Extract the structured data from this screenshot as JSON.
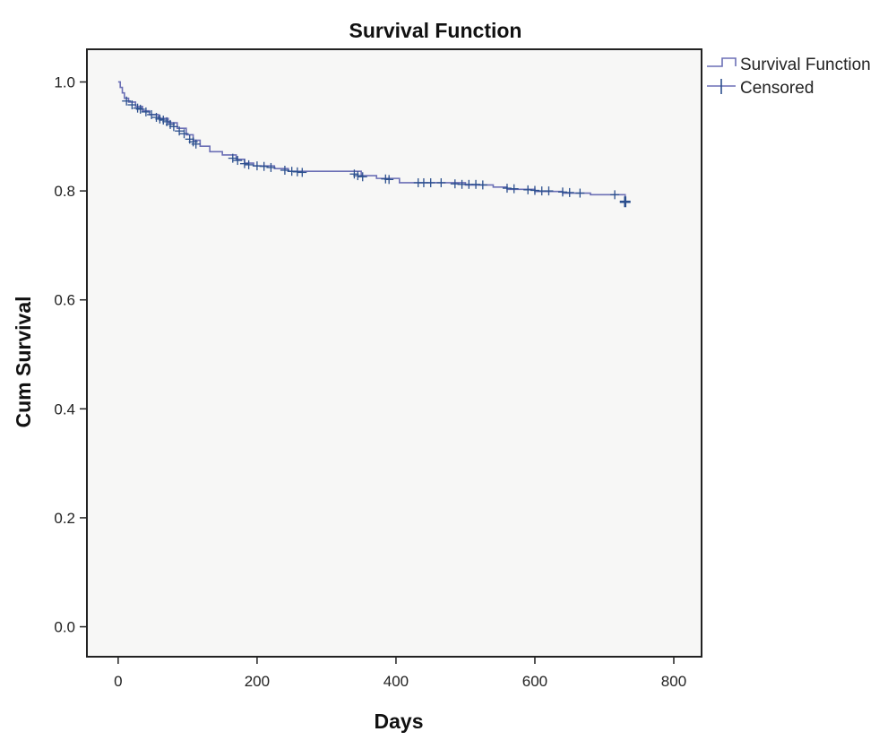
{
  "chart_data": {
    "type": "line",
    "title": "Survival Function",
    "xlabel": "Days",
    "ylabel": "Cum Survival",
    "xlim": [
      -45,
      840
    ],
    "ylim": [
      -0.055,
      1.06
    ],
    "x_ticks": [
      0,
      200,
      400,
      600,
      800
    ],
    "y_ticks": [
      0.0,
      0.2,
      0.4,
      0.6,
      0.8,
      1.0
    ],
    "x_tick_labels": [
      "0",
      "200",
      "400",
      "600",
      "800"
    ],
    "y_tick_labels": [
      "0.0",
      "0.2",
      "0.4",
      "0.6",
      "0.8",
      "1.0"
    ],
    "grid": false,
    "legend_position": "top-right-outside",
    "colors": {
      "line": "#6b6fb5",
      "censored": "#2b4f8e",
      "background": "#f7f7f6",
      "frame": "#222222"
    },
    "legend": [
      {
        "label": "Survival Function",
        "marker": "step-line"
      },
      {
        "label": "Censored",
        "marker": "plus"
      }
    ],
    "series": [
      {
        "name": "Survival Function",
        "steps": [
          [
            0,
            1.0
          ],
          [
            3,
            0.99
          ],
          [
            6,
            0.98
          ],
          [
            9,
            0.97
          ],
          [
            15,
            0.963
          ],
          [
            25,
            0.955
          ],
          [
            35,
            0.947
          ],
          [
            45,
            0.94
          ],
          [
            58,
            0.933
          ],
          [
            72,
            0.925
          ],
          [
            85,
            0.915
          ],
          [
            98,
            0.903
          ],
          [
            108,
            0.893
          ],
          [
            118,
            0.882
          ],
          [
            132,
            0.872
          ],
          [
            150,
            0.866
          ],
          [
            170,
            0.858
          ],
          [
            182,
            0.851
          ],
          [
            195,
            0.846
          ],
          [
            225,
            0.841
          ],
          [
            245,
            0.836
          ],
          [
            350,
            0.828
          ],
          [
            372,
            0.823
          ],
          [
            405,
            0.815
          ],
          [
            500,
            0.811
          ],
          [
            540,
            0.807
          ],
          [
            560,
            0.803
          ],
          [
            600,
            0.799
          ],
          [
            640,
            0.796
          ],
          [
            680,
            0.793
          ],
          [
            730,
            0.78
          ]
        ]
      },
      {
        "name": "Censored",
        "x": [
          12,
          20,
          28,
          32,
          40,
          48,
          55,
          60,
          65,
          70,
          75,
          80,
          88,
          95,
          103,
          108,
          112,
          165,
          172,
          182,
          188,
          200,
          210,
          220,
          240,
          250,
          258,
          265,
          340,
          345,
          352,
          385,
          390,
          432,
          440,
          450,
          465,
          485,
          495,
          505,
          515,
          525,
          560,
          570,
          590,
          600,
          610,
          620,
          640,
          650,
          665,
          715,
          730
        ],
        "y": [
          0.965,
          0.958,
          0.952,
          0.95,
          0.945,
          0.94,
          0.935,
          0.932,
          0.93,
          0.927,
          0.922,
          0.918,
          0.91,
          0.905,
          0.895,
          0.89,
          0.886,
          0.86,
          0.856,
          0.85,
          0.848,
          0.846,
          0.845,
          0.843,
          0.838,
          0.836,
          0.835,
          0.834,
          0.831,
          0.828,
          0.826,
          0.822,
          0.821,
          0.815,
          0.815,
          0.815,
          0.815,
          0.813,
          0.812,
          0.812,
          0.812,
          0.811,
          0.805,
          0.804,
          0.802,
          0.801,
          0.8,
          0.8,
          0.798,
          0.797,
          0.796,
          0.793,
          0.78
        ]
      }
    ]
  }
}
